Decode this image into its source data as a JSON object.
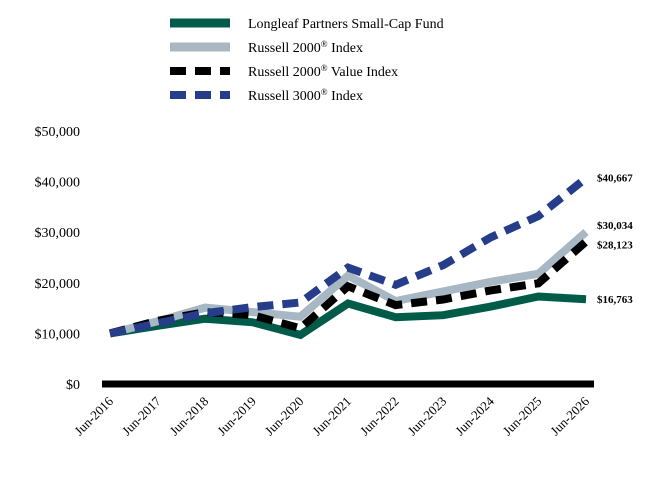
{
  "chart_data": {
    "type": "line",
    "title": "",
    "xlabel": "",
    "ylabel": "",
    "categories": [
      "Jun-2016",
      "Jun-2017",
      "Jun-2018",
      "Jun-2019",
      "Jun-2020",
      "Jun-2021",
      "Jun-2022",
      "Jun-2023",
      "Jun-2024",
      "Jun-2025",
      "Jun-2026"
    ],
    "ylim": [
      0,
      50000
    ],
    "yticks": [
      0,
      10000,
      20000,
      30000,
      40000,
      50000
    ],
    "ytick_labels": [
      "$0",
      "$10,000",
      "$20,000",
      "$30,000",
      "$40,000",
      "$50,000"
    ],
    "legend_position": "top-center",
    "grid": false,
    "series": [
      {
        "name": "Longleaf Partners Small-Cap Fund",
        "color": "#005B48",
        "style": "solid",
        "values": [
          10000,
          11500,
          12900,
          12200,
          9700,
          15900,
          13200,
          13600,
          15300,
          17300,
          16763
        ],
        "end_label": "$16,763"
      },
      {
        "name": "Russell 2000® Index",
        "color": "#A7B7C3",
        "style": "solid",
        "values": [
          10000,
          12400,
          15100,
          14200,
          13300,
          21400,
          16400,
          18300,
          20200,
          21800,
          30034
        ],
        "end_label": "$30,034"
      },
      {
        "name": "Russell 2000® Value Index",
        "color": "#000000",
        "style": "dashed",
        "values": [
          10000,
          12500,
          14200,
          13600,
          11000,
          19300,
          15600,
          16700,
          18500,
          19900,
          28123
        ],
        "end_label": "$28,123"
      },
      {
        "name": "Russell 3000® Index",
        "color": "#263D8A",
        "style": "dashed",
        "values": [
          10000,
          12000,
          14000,
          15200,
          16100,
          23000,
          19600,
          23500,
          29000,
          33200,
          40667
        ],
        "end_label": "$40,667"
      }
    ]
  }
}
